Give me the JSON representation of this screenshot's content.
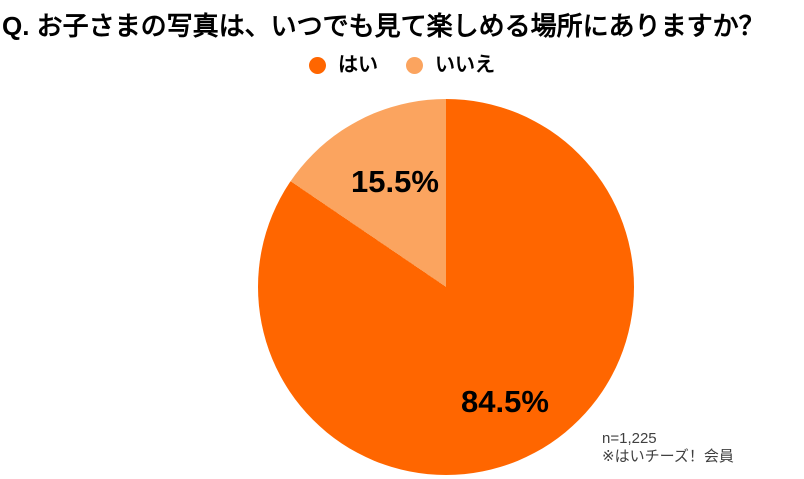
{
  "title": "Q. お子さまの写真は、いつでも見て楽しめる場所にありますか？",
  "legend": {
    "items": [
      {
        "label": "はい",
        "color": "#FF6600"
      },
      {
        "label": "いいえ",
        "color": "#FBA45F"
      }
    ]
  },
  "chart_data": {
    "type": "pie",
    "title": "Q. お子さまの写真は、いつでも見て楽しめる場所にありますか？",
    "categories": [
      "はい",
      "いいえ"
    ],
    "values": [
      84.5,
      15.5
    ],
    "labels": [
      "84.5%",
      "15.5%"
    ],
    "colors": [
      "#FF6600",
      "#FBA45F"
    ],
    "start_angle_deg": 0,
    "direction": "clockwise",
    "legend_position": "top"
  },
  "note": {
    "line1": "n=1,225",
    "line2": "※はいチーズ！会員"
  }
}
